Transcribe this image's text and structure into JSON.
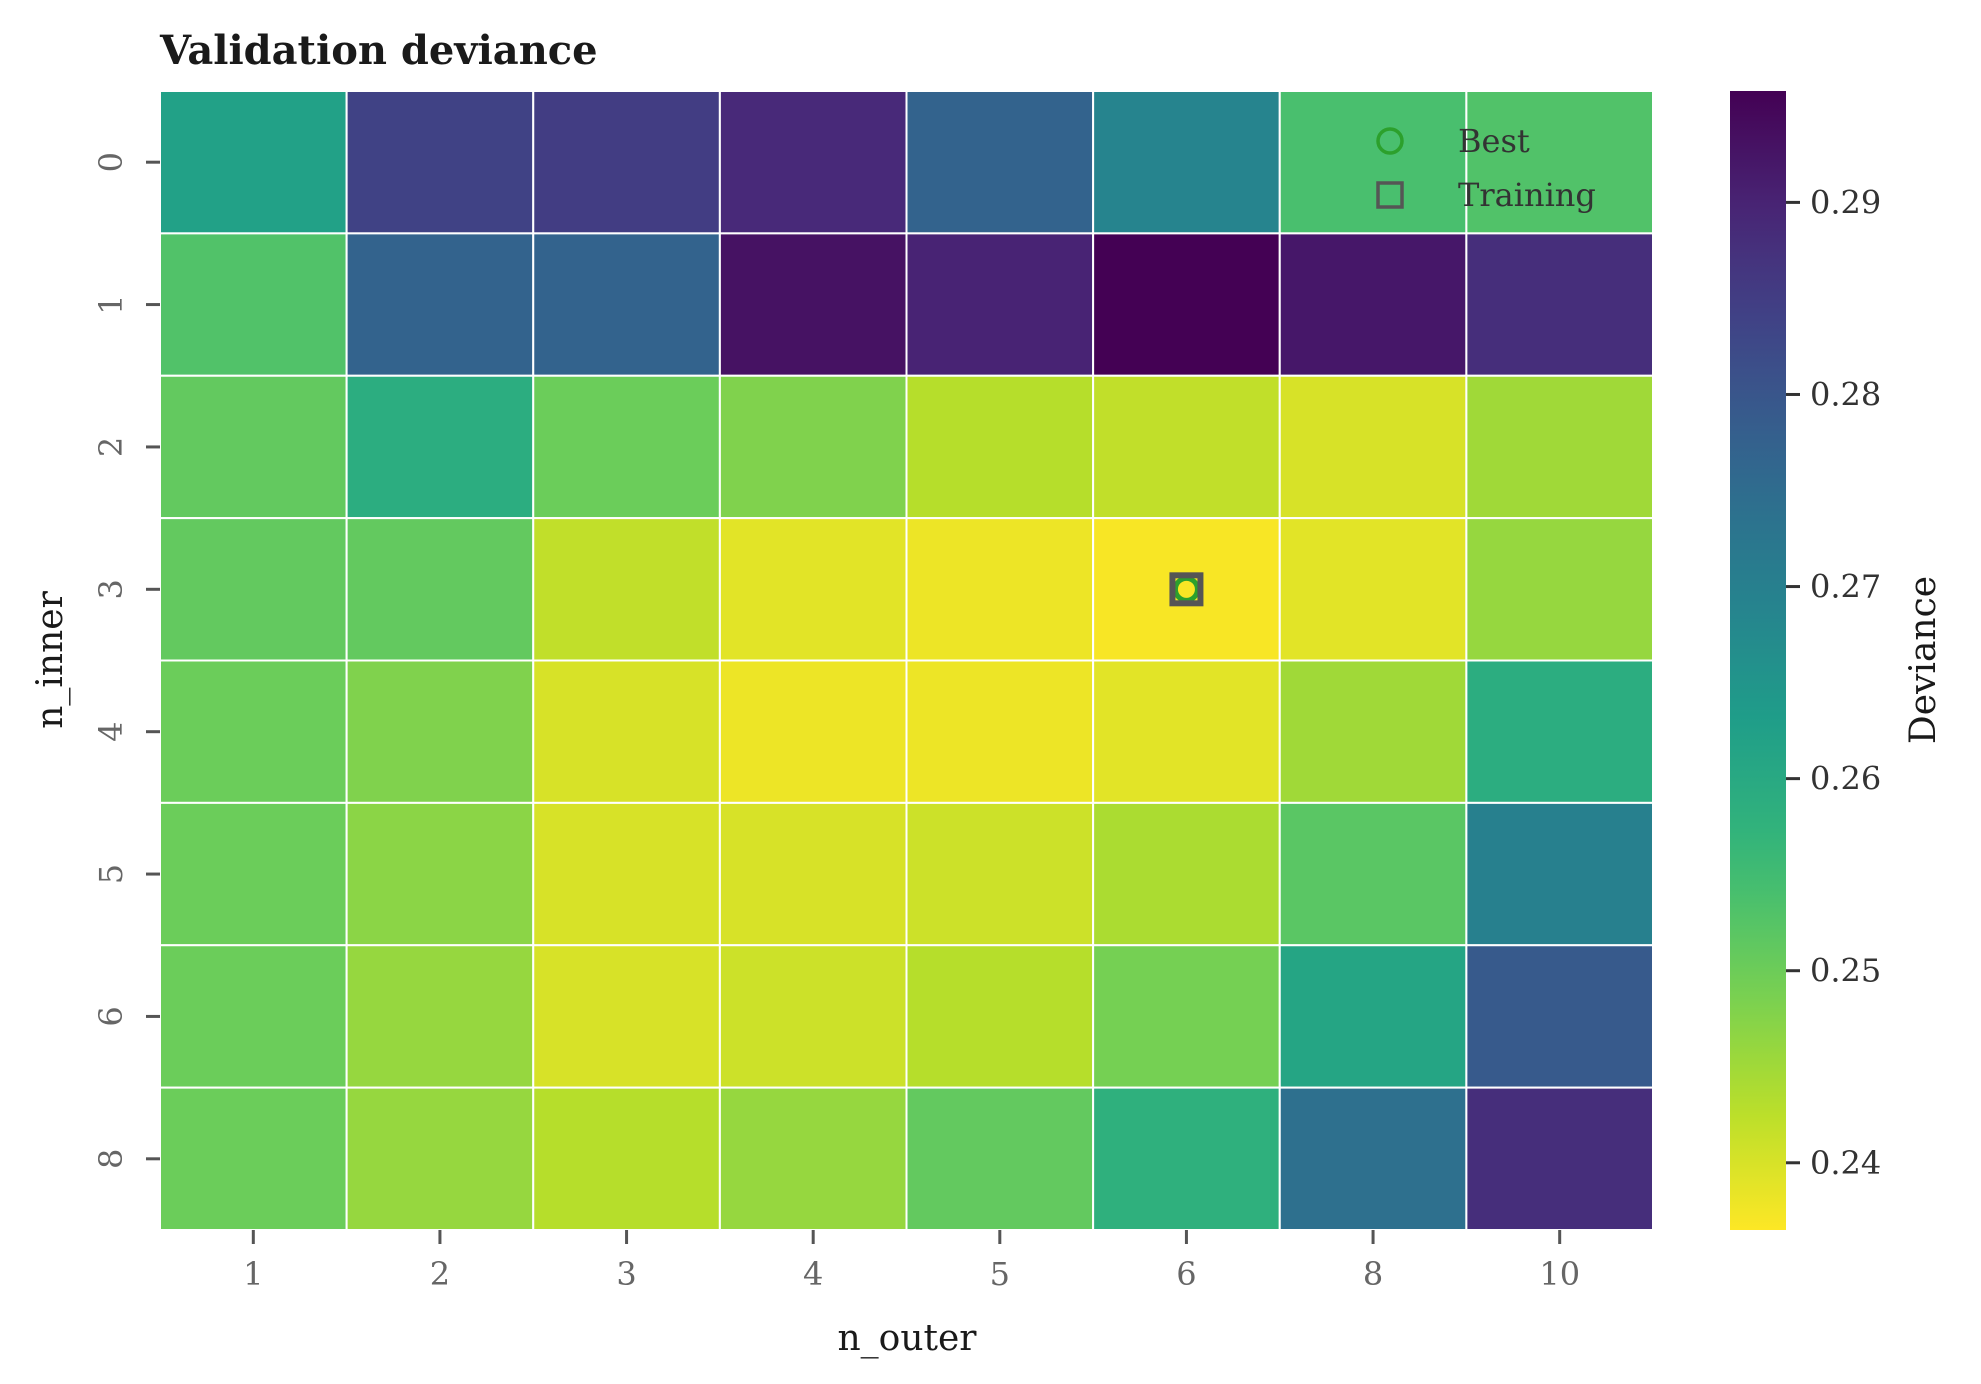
{
  "chart_data": {
    "type": "heatmap",
    "title": "Validation deviance",
    "xlabel": "n_outer",
    "ylabel": "n_inner",
    "x_categories": [
      "1",
      "2",
      "3",
      "4",
      "5",
      "6",
      "8",
      "10"
    ],
    "y_categories": [
      "0",
      "1",
      "2",
      "3",
      "4",
      "5",
      "6",
      "8"
    ],
    "values": [
      [
        0.262,
        0.284,
        0.285,
        0.289,
        0.277,
        0.269,
        0.254,
        0.253
      ],
      [
        0.253,
        0.277,
        0.277,
        0.293,
        0.29,
        0.296,
        0.292,
        0.288
      ],
      [
        0.251,
        0.259,
        0.25,
        0.248,
        0.243,
        0.242,
        0.24,
        0.245
      ],
      [
        0.251,
        0.251,
        0.242,
        0.239,
        0.238,
        0.237,
        0.239,
        0.246
      ],
      [
        0.25,
        0.248,
        0.24,
        0.238,
        0.238,
        0.239,
        0.245,
        0.259
      ],
      [
        0.25,
        0.247,
        0.24,
        0.24,
        0.241,
        0.244,
        0.252,
        0.27
      ],
      [
        0.25,
        0.246,
        0.24,
        0.241,
        0.243,
        0.249,
        0.261,
        0.279
      ],
      [
        0.25,
        0.246,
        0.243,
        0.246,
        0.251,
        0.258,
        0.274,
        0.288
      ]
    ],
    "colormap": "viridis_r",
    "vmin": 0.2365,
    "vmax": 0.2958,
    "colorbar": {
      "label": "Deviance",
      "ticks": [
        0.24,
        0.25,
        0.26,
        0.27,
        0.28,
        0.29
      ],
      "tick_labels": [
        "0.24",
        "0.25",
        "0.26",
        "0.27",
        "0.28",
        "0.29"
      ]
    },
    "markers": [
      {
        "name": "Best",
        "shape": "circle",
        "color": "#2ca02c",
        "x": "6",
        "y": "3"
      },
      {
        "name": "Training",
        "shape": "square",
        "color": "#555555",
        "x": "6",
        "y": "3"
      }
    ],
    "legend": {
      "position": "top-right",
      "entries": [
        "Best",
        "Training"
      ]
    },
    "grid": false
  }
}
